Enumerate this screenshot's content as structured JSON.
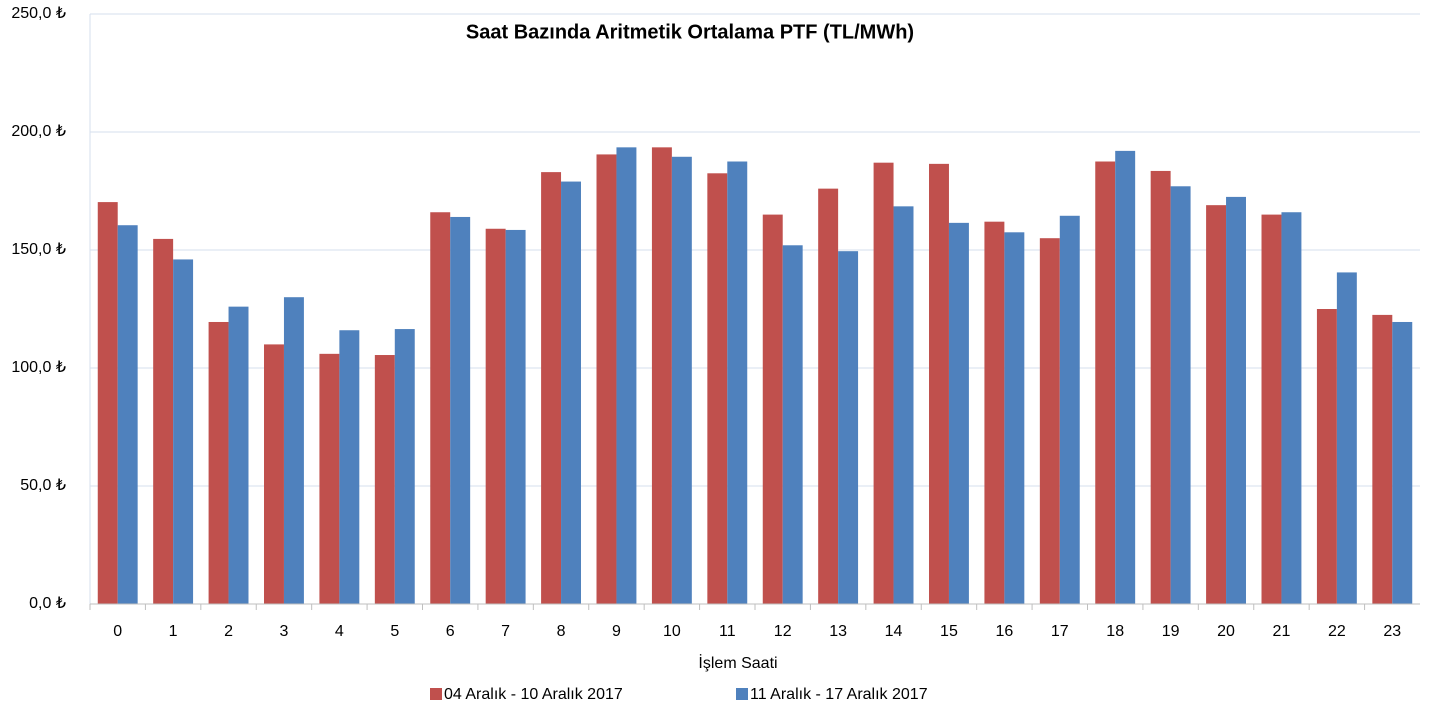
{
  "chart_data": {
    "type": "bar",
    "title": "Saat Bazında Aritmetik Ortalama PTF (TL/MWh)",
    "x_label": "İşlem Saati",
    "categories": [
      "0",
      "1",
      "2",
      "3",
      "4",
      "5",
      "6",
      "7",
      "8",
      "9",
      "10",
      "11",
      "12",
      "13",
      "14",
      "15",
      "16",
      "17",
      "18",
      "19",
      "20",
      "21",
      "22",
      "23"
    ],
    "series": [
      {
        "name": "04 Aralık - 10 Aralık 2017",
        "color": "#c0504d",
        "values": [
          170.3,
          154.7,
          119.5,
          110,
          106,
          105.5,
          166,
          159,
          183,
          190.5,
          193.5,
          182.5,
          165,
          176,
          187,
          186.5,
          162,
          155,
          187.5,
          183.5,
          169,
          165,
          125,
          122.5
        ]
      },
      {
        "name": "11 Aralık - 17 Aralık 2017",
        "color": "#4f81bd",
        "values": [
          160.5,
          146,
          126,
          130,
          116,
          116.5,
          164,
          158.5,
          179,
          193.5,
          189.5,
          187.5,
          152,
          149.5,
          168.5,
          161.5,
          157.5,
          164.5,
          192,
          177,
          172.5,
          166,
          140.5,
          119.5
        ]
      }
    ],
    "ylim": [
      0,
      250
    ],
    "yticks": [
      {
        "value": 0,
        "label": "0,0 ₺"
      },
      {
        "value": 50,
        "label": "50,0 ₺"
      },
      {
        "value": 100,
        "label": "100,0 ₺"
      },
      {
        "value": 150,
        "label": "150,0 ₺"
      },
      {
        "value": 200,
        "label": "200,0 ₺"
      },
      {
        "value": 250,
        "label": "250,0 ₺"
      }
    ],
    "grid": true,
    "legend": "bottom"
  }
}
